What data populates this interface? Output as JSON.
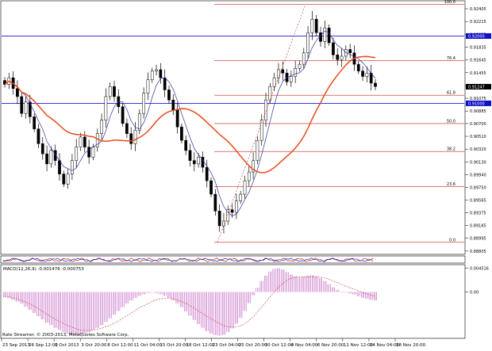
{
  "chart_data": [
    {
      "type": "candlestick",
      "panel": "main",
      "instrument_pair": "USD/CHF",
      "y_ticks": [
        "0.92405",
        "0.92215",
        "0.92025",
        "0.91835",
        "0.91645",
        "0.91455",
        "0.91265",
        "0.91075",
        "0.90885",
        "0.90700",
        "0.90510",
        "0.90320",
        "0.90130",
        "0.89940",
        "0.89750",
        "0.89565",
        "0.89375",
        "0.89185",
        "0.88995",
        "0.88805"
      ],
      "ylim": [
        0.8878,
        0.925
      ],
      "price_badges": [
        {
          "label": "0.92000",
          "value": 0.92,
          "color": "#1010c8"
        },
        {
          "label": "0.91247",
          "value": 0.91247,
          "color": "#000000"
        },
        {
          "label": "0.91000",
          "value": 0.91,
          "color": "#1010c8"
        }
      ],
      "horizontal_lines": [
        {
          "value": 0.92,
          "color": "#1a1ad0"
        },
        {
          "value": 0.91,
          "color": "#1a1ad0"
        }
      ],
      "fibonacci_levels": [
        {
          "label": "100.0",
          "value": 0.9247
        },
        {
          "label": "76.4",
          "value": 0.91635
        },
        {
          "label": "61.8",
          "value": 0.9112
        },
        {
          "label": "50.0",
          "value": 0.907
        },
        {
          "label": "38.2",
          "value": 0.90285
        },
        {
          "label": "23.6",
          "value": 0.89765
        },
        {
          "label": "0.0",
          "value": 0.88935
        }
      ],
      "x_labels": [
        "23 Sep 2013",
        "26 Sep 12:00",
        "1 Oct 2013",
        "3 Oct 20:00",
        "8 Oct 12:00",
        "11 Oct 04:00",
        "15 Oct 20:00",
        "18 Oct 12:00",
        "23 Oct 04:00",
        "25 Oct 20:00",
        "30 Oct 12:00",
        "4 Nov 04:00",
        "6 Nov 20:00",
        "11 Nov 12:00",
        "14 Nov 04:00",
        "18 Nov 20:00"
      ],
      "candles_close": [
        0.9128,
        0.9138,
        0.9122,
        0.911,
        0.9085,
        0.9102,
        0.908,
        0.9062,
        0.904,
        0.9025,
        0.901,
        0.903,
        0.9015,
        0.8995,
        0.898,
        0.8995,
        0.9015,
        0.9035,
        0.905,
        0.9035,
        0.902,
        0.9035,
        0.9055,
        0.9075,
        0.911,
        0.9125,
        0.911,
        0.9095,
        0.907,
        0.9055,
        0.904,
        0.906,
        0.9085,
        0.9115,
        0.9135,
        0.9148,
        0.915,
        0.9138,
        0.912,
        0.9105,
        0.909,
        0.9065,
        0.9045,
        0.903,
        0.9015,
        0.901,
        0.902,
        0.9005,
        0.8985,
        0.8965,
        0.894,
        0.8918,
        0.8925,
        0.8942,
        0.8938,
        0.8955,
        0.8965,
        0.8985,
        0.8998,
        0.9015,
        0.9045,
        0.9075,
        0.9105,
        0.9125,
        0.9138,
        0.915,
        0.9145,
        0.9132,
        0.914,
        0.9152,
        0.9158,
        0.9175,
        0.9205,
        0.9225,
        0.9205,
        0.9192,
        0.9212,
        0.919,
        0.9172,
        0.9165,
        0.917,
        0.918,
        0.9175,
        0.9158,
        0.9148,
        0.914,
        0.9145,
        0.913,
        0.9125
      ]
    },
    {
      "type": "oscillator-strip",
      "panel": "strip",
      "ylim": [
        -1,
        1
      ]
    },
    {
      "type": "macd",
      "panel": "macd",
      "title": "MACD(12,26,9) -0.001476 -0.000753",
      "y_ticks": [
        {
          "label": "0.004516",
          "value": 0.004516
        },
        {
          "label": "0.00",
          "value": 0.0
        }
      ],
      "ylim": [
        -0.0085,
        0.0049
      ],
      "histogram": [
        -0.001,
        -0.0012,
        -0.0015,
        -0.0018,
        -0.0022,
        -0.0028,
        -0.0034,
        -0.004,
        -0.0046,
        -0.0052,
        -0.0058,
        -0.0063,
        -0.0068,
        -0.0072,
        -0.0076,
        -0.0079,
        -0.0081,
        -0.0082,
        -0.0081,
        -0.0079,
        -0.0076,
        -0.0072,
        -0.0068,
        -0.0063,
        -0.0057,
        -0.005,
        -0.0043,
        -0.0036,
        -0.0029,
        -0.0022,
        -0.0016,
        -0.0011,
        -0.0007,
        -0.0004,
        -0.0002,
        -0.0001,
        -0.0002,
        -0.0004,
        -0.0007,
        -0.0011,
        -0.0016,
        -0.0022,
        -0.0029,
        -0.0037,
        -0.0045,
        -0.0053,
        -0.0061,
        -0.0068,
        -0.0074,
        -0.0079,
        -0.0082,
        -0.0083,
        -0.0081,
        -0.0076,
        -0.0069,
        -0.006,
        -0.0049,
        -0.0036,
        -0.0021,
        -0.0006,
        0.0008,
        0.0021,
        0.0031,
        0.0039,
        0.0044,
        0.0045,
        0.0043,
        0.0038,
        0.0033,
        0.003,
        0.0028,
        0.0029,
        0.0031,
        0.0032,
        0.003,
        0.0026,
        0.0021,
        0.0015,
        0.0009,
        0.0004,
        0.0001,
        -0.0001,
        -0.0003,
        -0.0005,
        -0.0008,
        -0.0011,
        -0.0013,
        -0.0015,
        -0.0016
      ],
      "signal": [
        -0.0008,
        -0.0009,
        -0.0011,
        -0.0013,
        -0.0016,
        -0.0019,
        -0.0023,
        -0.0027,
        -0.0032,
        -0.0037,
        -0.0042,
        -0.0047,
        -0.0052,
        -0.0056,
        -0.006,
        -0.0064,
        -0.0067,
        -0.007,
        -0.0072,
        -0.0073,
        -0.0073,
        -0.0072,
        -0.0071,
        -0.0069,
        -0.0066,
        -0.0063,
        -0.0059,
        -0.0055,
        -0.005,
        -0.0045,
        -0.004,
        -0.0035,
        -0.003,
        -0.0026,
        -0.0022,
        -0.0018,
        -0.0015,
        -0.0013,
        -0.0012,
        -0.0012,
        -0.0013,
        -0.0015,
        -0.0018,
        -0.0022,
        -0.0026,
        -0.0031,
        -0.0036,
        -0.0041,
        -0.0046,
        -0.0051,
        -0.0056,
        -0.006,
        -0.0064,
        -0.0066,
        -0.0067,
        -0.0066,
        -0.0064,
        -0.006,
        -0.0054,
        -0.0047,
        -0.0038,
        -0.0029,
        -0.0019,
        -0.0009,
        0.0,
        0.0009,
        0.0016,
        0.0022,
        0.0026,
        0.0028,
        0.0029,
        0.0029,
        0.0029,
        0.0029,
        0.0029,
        0.0028,
        0.0027,
        0.0024,
        0.0021,
        0.0018,
        0.0014,
        0.0011,
        0.0008,
        0.0005,
        0.0002,
        -0.0001,
        -0.0004,
        -0.0006,
        -0.0008
      ]
    }
  ],
  "footer": {
    "copyright": "Rate Streamer. © 2003-2013, MetaQuotes Software Corp."
  },
  "colors": {
    "background": "#ffffff",
    "candle": "#000000",
    "ma_fast": "#3030a0",
    "ma_slow": "#e84a1a",
    "fib": "#c0281a",
    "hline": "#1a1ad0",
    "macd_hist": "#c060c0",
    "macd_signal": "#d03030"
  }
}
